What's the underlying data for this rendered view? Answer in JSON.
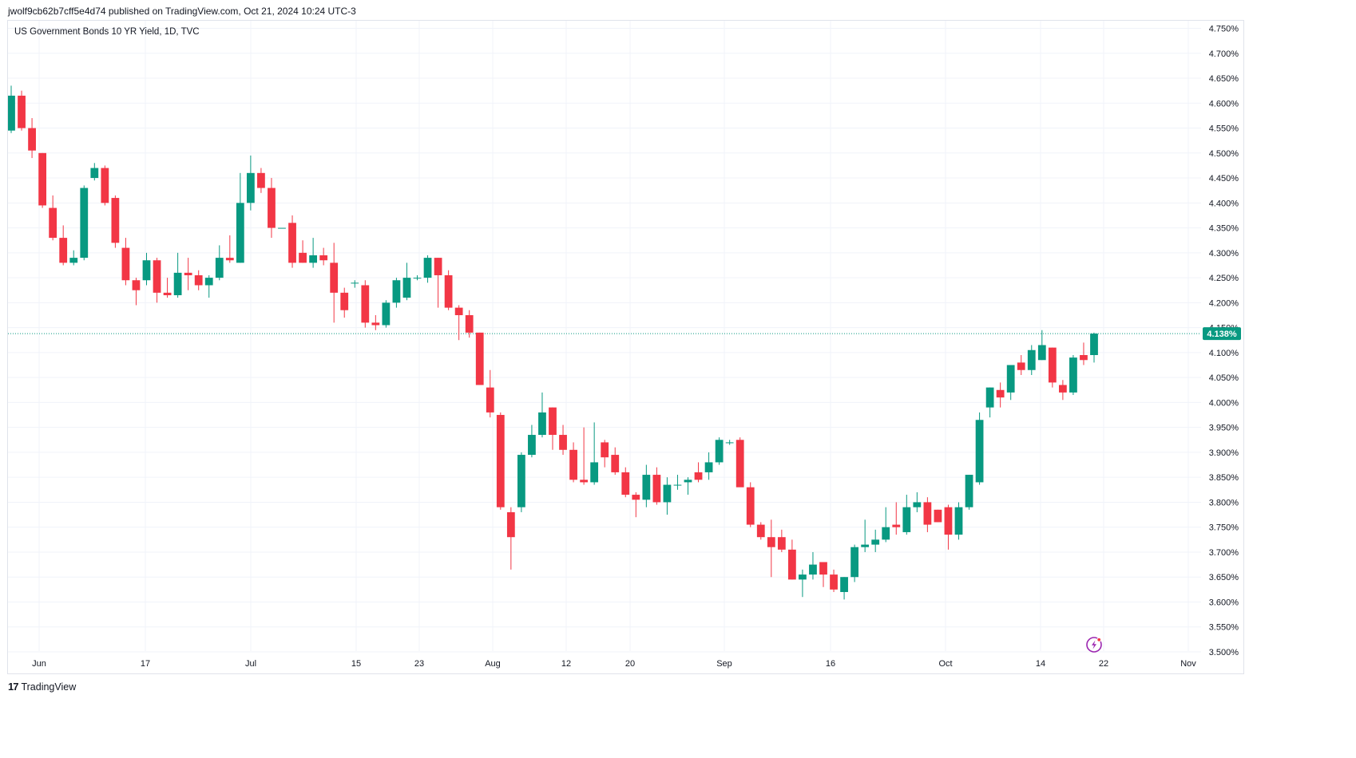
{
  "header": {
    "published_line": "jwolf9cb62b7cff5e4d74 published on TradingView.com, Oct 21, 2024 10:24 UTC-3"
  },
  "footer": {
    "brand_mark": "17",
    "brand_name": "TradingView"
  },
  "colors": {
    "up": "#089981",
    "down": "#f23645",
    "grid": "#f0f3fa",
    "axis_text": "#131722",
    "price_line": "#089981",
    "price_label_bg": "#089981"
  },
  "icons": {
    "lightning": "lightning-icon"
  },
  "chart_data": {
    "type": "candlestick",
    "title": "US Government Bonds 10 YR Yield, 1D, TVC",
    "xlabel": "",
    "ylabel": "",
    "grid": true,
    "y_axis_position": "right",
    "ylim": [
      3.5,
      4.75
    ],
    "y_ticks": [
      "3.500%",
      "3.550%",
      "3.600%",
      "3.650%",
      "3.700%",
      "3.750%",
      "3.800%",
      "3.850%",
      "3.900%",
      "3.950%",
      "4.000%",
      "4.050%",
      "4.100%",
      "4.150%",
      "4.200%",
      "4.250%",
      "4.300%",
      "4.350%",
      "4.400%",
      "4.450%",
      "4.500%",
      "4.550%",
      "4.600%",
      "4.650%",
      "4.700%",
      "4.750%"
    ],
    "x_ticks": [
      {
        "label": "Jun",
        "date": "2024-06-03"
      },
      {
        "label": "17",
        "date": "2024-06-17"
      },
      {
        "label": "Jul",
        "date": "2024-07-01"
      },
      {
        "label": "15",
        "date": "2024-07-15"
      },
      {
        "label": "23",
        "date": "2024-07-23"
      },
      {
        "label": "Aug",
        "date": "2024-08-01"
      },
      {
        "label": "12",
        "date": "2024-08-12"
      },
      {
        "label": "20",
        "date": "2024-08-20"
      },
      {
        "label": "Sep",
        "date": "2024-09-02"
      },
      {
        "label": "16",
        "date": "2024-09-16"
      },
      {
        "label": "Oct",
        "date": "2024-10-01"
      },
      {
        "label": "14",
        "date": "2024-10-14"
      },
      {
        "label": "22",
        "date": "2024-10-22"
      },
      {
        "label": "Nov",
        "date": "2024-11-01"
      }
    ],
    "last_price": 4.138,
    "last_price_label": "4.138%",
    "candles": [
      {
        "date": "2024-05-29",
        "open": 4.545,
        "high": 4.635,
        "low": 4.54,
        "close": 4.615
      },
      {
        "date": "2024-05-30",
        "open": 4.615,
        "high": 4.625,
        "low": 4.545,
        "close": 4.55
      },
      {
        "date": "2024-05-31",
        "open": 4.55,
        "high": 4.57,
        "low": 4.49,
        "close": 4.505
      },
      {
        "date": "2024-06-03",
        "open": 4.5,
        "high": 4.5,
        "low": 4.39,
        "close": 4.395
      },
      {
        "date": "2024-06-04",
        "open": 4.39,
        "high": 4.415,
        "low": 4.325,
        "close": 4.33
      },
      {
        "date": "2024-06-05",
        "open": 4.33,
        "high": 4.355,
        "low": 4.275,
        "close": 4.28
      },
      {
        "date": "2024-06-06",
        "open": 4.28,
        "high": 4.305,
        "low": 4.275,
        "close": 4.29
      },
      {
        "date": "2024-06-07",
        "open": 4.29,
        "high": 4.435,
        "low": 4.285,
        "close": 4.43
      },
      {
        "date": "2024-06-10",
        "open": 4.45,
        "high": 4.48,
        "low": 4.445,
        "close": 4.47
      },
      {
        "date": "2024-06-11",
        "open": 4.47,
        "high": 4.475,
        "low": 4.395,
        "close": 4.4
      },
      {
        "date": "2024-06-12",
        "open": 4.41,
        "high": 4.415,
        "low": 4.31,
        "close": 4.32
      },
      {
        "date": "2024-06-13",
        "open": 4.31,
        "high": 4.33,
        "low": 4.235,
        "close": 4.245
      },
      {
        "date": "2024-06-14",
        "open": 4.245,
        "high": 4.25,
        "low": 4.195,
        "close": 4.225
      },
      {
        "date": "2024-06-17",
        "open": 4.245,
        "high": 4.3,
        "low": 4.235,
        "close": 4.285
      },
      {
        "date": "2024-06-18",
        "open": 4.285,
        "high": 4.29,
        "low": 4.2,
        "close": 4.22
      },
      {
        "date": "2024-06-20",
        "open": 4.22,
        "high": 4.25,
        "low": 4.21,
        "close": 4.215
      },
      {
        "date": "2024-06-21",
        "open": 4.215,
        "high": 4.3,
        "low": 4.21,
        "close": 4.26
      },
      {
        "date": "2024-06-24",
        "open": 4.26,
        "high": 4.29,
        "low": 4.225,
        "close": 4.255
      },
      {
        "date": "2024-06-25",
        "open": 4.255,
        "high": 4.265,
        "low": 4.225,
        "close": 4.235
      },
      {
        "date": "2024-06-26",
        "open": 4.235,
        "high": 4.255,
        "low": 4.21,
        "close": 4.25
      },
      {
        "date": "2024-06-27",
        "open": 4.25,
        "high": 4.315,
        "low": 4.245,
        "close": 4.29
      },
      {
        "date": "2024-06-28",
        "open": 4.29,
        "high": 4.335,
        "low": 4.28,
        "close": 4.285
      },
      {
        "date": "2024-07-01",
        "open": 4.28,
        "high": 4.46,
        "low": 4.28,
        "close": 4.4
      },
      {
        "date": "2024-07-02",
        "open": 4.4,
        "high": 4.495,
        "low": 4.385,
        "close": 4.46
      },
      {
        "date": "2024-07-03",
        "open": 4.46,
        "high": 4.47,
        "low": 4.42,
        "close": 4.43
      },
      {
        "date": "2024-07-05",
        "open": 4.43,
        "high": 4.45,
        "low": 4.33,
        "close": 4.35
      },
      {
        "date": "2024-07-08",
        "open": 4.35,
        "high": 4.35,
        "low": 4.35,
        "close": 4.35
      },
      {
        "date": "2024-07-09",
        "open": 4.36,
        "high": 4.375,
        "low": 4.27,
        "close": 4.28
      },
      {
        "date": "2024-07-10",
        "open": 4.3,
        "high": 4.325,
        "low": 4.28,
        "close": 4.28
      },
      {
        "date": "2024-07-11",
        "open": 4.28,
        "high": 4.33,
        "low": 4.27,
        "close": 4.295
      },
      {
        "date": "2024-07-12",
        "open": 4.295,
        "high": 4.31,
        "low": 4.275,
        "close": 4.285
      },
      {
        "date": "2024-07-15",
        "open": 4.28,
        "high": 4.32,
        "low": 4.16,
        "close": 4.22
      },
      {
        "date": "2024-07-16",
        "open": 4.22,
        "high": 4.23,
        "low": 4.17,
        "close": 4.185
      },
      {
        "date": "2024-07-17",
        "open": 4.24,
        "high": 4.245,
        "low": 4.23,
        "close": 4.24
      },
      {
        "date": "2024-07-18",
        "open": 4.235,
        "high": 4.245,
        "low": 4.15,
        "close": 4.16
      },
      {
        "date": "2024-07-19",
        "open": 4.16,
        "high": 4.175,
        "low": 4.145,
        "close": 4.155
      },
      {
        "date": "2024-07-22",
        "open": 4.155,
        "high": 4.205,
        "low": 4.15,
        "close": 4.2
      },
      {
        "date": "2024-07-23",
        "open": 4.2,
        "high": 4.25,
        "low": 4.19,
        "close": 4.245
      },
      {
        "date": "2024-07-24",
        "open": 4.21,
        "high": 4.28,
        "low": 4.205,
        "close": 4.25
      },
      {
        "date": "2024-07-25",
        "open": 4.25,
        "high": 4.255,
        "low": 4.245,
        "close": 4.25
      },
      {
        "date": "2024-07-26",
        "open": 4.25,
        "high": 4.295,
        "low": 4.24,
        "close": 4.29
      },
      {
        "date": "2024-07-29",
        "open": 4.29,
        "high": 4.29,
        "low": 4.19,
        "close": 4.255
      },
      {
        "date": "2024-07-30",
        "open": 4.255,
        "high": 4.265,
        "low": 4.185,
        "close": 4.19
      },
      {
        "date": "2024-07-31",
        "open": 4.19,
        "high": 4.195,
        "low": 4.125,
        "close": 4.175
      },
      {
        "date": "2024-08-01",
        "open": 4.175,
        "high": 4.185,
        "low": 4.13,
        "close": 4.14
      },
      {
        "date": "2024-08-02",
        "open": 4.14,
        "high": 4.14,
        "low": 4.035,
        "close": 4.035
      },
      {
        "date": "2024-08-05",
        "open": 4.03,
        "high": 4.065,
        "low": 3.97,
        "close": 3.98
      },
      {
        "date": "2024-08-05b",
        "open": 3.975,
        "high": 3.98,
        "low": 3.785,
        "close": 3.79
      },
      {
        "date": "2024-08-06",
        "open": 3.78,
        "high": 3.79,
        "low": 3.665,
        "close": 3.73
      },
      {
        "date": "2024-08-07",
        "open": 3.79,
        "high": 3.9,
        "low": 3.78,
        "close": 3.895
      },
      {
        "date": "2024-08-08",
        "open": 3.895,
        "high": 3.955,
        "low": 3.89,
        "close": 3.935
      },
      {
        "date": "2024-08-09",
        "open": 3.935,
        "high": 4.02,
        "low": 3.93,
        "close": 3.98
      },
      {
        "date": "2024-08-12",
        "open": 3.99,
        "high": 3.99,
        "low": 3.905,
        "close": 3.935
      },
      {
        "date": "2024-08-13",
        "open": 3.935,
        "high": 3.955,
        "low": 3.895,
        "close": 3.905
      },
      {
        "date": "2024-08-14",
        "open": 3.905,
        "high": 3.92,
        "low": 3.84,
        "close": 3.845
      },
      {
        "date": "2024-08-15",
        "open": 3.845,
        "high": 3.95,
        "low": 3.835,
        "close": 3.84
      },
      {
        "date": "2024-08-16",
        "open": 3.84,
        "high": 3.96,
        "low": 3.835,
        "close": 3.88
      },
      {
        "date": "2024-08-19",
        "open": 3.92,
        "high": 3.925,
        "low": 3.87,
        "close": 3.89
      },
      {
        "date": "2024-08-20",
        "open": 3.895,
        "high": 3.91,
        "low": 3.855,
        "close": 3.86
      },
      {
        "date": "2024-08-21",
        "open": 3.86,
        "high": 3.87,
        "low": 3.81,
        "close": 3.815
      },
      {
        "date": "2024-08-22",
        "open": 3.815,
        "high": 3.82,
        "low": 3.77,
        "close": 3.805
      },
      {
        "date": "2024-08-23",
        "open": 3.805,
        "high": 3.875,
        "low": 3.79,
        "close": 3.855
      },
      {
        "date": "2024-08-26",
        "open": 3.855,
        "high": 3.87,
        "low": 3.795,
        "close": 3.8
      },
      {
        "date": "2024-08-27",
        "open": 3.8,
        "high": 3.85,
        "low": 3.775,
        "close": 3.835
      },
      {
        "date": "2024-08-28",
        "open": 3.835,
        "high": 3.855,
        "low": 3.825,
        "close": 3.835
      },
      {
        "date": "2024-08-29",
        "open": 3.84,
        "high": 3.85,
        "low": 3.815,
        "close": 3.845
      },
      {
        "date": "2024-08-30",
        "open": 3.86,
        "high": 3.88,
        "low": 3.84,
        "close": 3.845
      },
      {
        "date": "2024-09-03",
        "open": 3.86,
        "high": 3.9,
        "low": 3.845,
        "close": 3.88
      },
      {
        "date": "2024-09-04",
        "open": 3.88,
        "high": 3.93,
        "low": 3.875,
        "close": 3.925
      },
      {
        "date": "2024-09-05",
        "open": 3.92,
        "high": 3.925,
        "low": 3.915,
        "close": 3.92
      },
      {
        "date": "2024-09-06",
        "open": 3.925,
        "high": 3.93,
        "low": 3.835,
        "close": 3.83
      },
      {
        "date": "2024-09-09",
        "open": 3.83,
        "high": 3.84,
        "low": 3.75,
        "close": 3.755
      },
      {
        "date": "2024-09-10",
        "open": 3.755,
        "high": 3.76,
        "low": 3.725,
        "close": 3.73
      },
      {
        "date": "2024-09-11",
        "open": 3.73,
        "high": 3.765,
        "low": 3.65,
        "close": 3.71
      },
      {
        "date": "2024-09-12",
        "open": 3.73,
        "high": 3.745,
        "low": 3.7,
        "close": 3.705
      },
      {
        "date": "2024-09-13",
        "open": 3.705,
        "high": 3.725,
        "low": 3.645,
        "close": 3.645
      },
      {
        "date": "2024-09-16",
        "open": 3.645,
        "high": 3.665,
        "low": 3.61,
        "close": 3.655
      },
      {
        "date": "2024-09-17",
        "open": 3.655,
        "high": 3.7,
        "low": 3.645,
        "close": 3.675
      },
      {
        "date": "2024-09-18",
        "open": 3.68,
        "high": 3.68,
        "low": 3.63,
        "close": 3.655
      },
      {
        "date": "2024-09-19",
        "open": 3.655,
        "high": 3.665,
        "low": 3.62,
        "close": 3.625
      },
      {
        "date": "2024-09-20",
        "open": 3.62,
        "high": 3.65,
        "low": 3.605,
        "close": 3.65
      },
      {
        "date": "2024-09-23",
        "open": 3.65,
        "high": 3.715,
        "low": 3.64,
        "close": 3.71
      },
      {
        "date": "2024-09-24",
        "open": 3.71,
        "high": 3.765,
        "low": 3.7,
        "close": 3.715
      },
      {
        "date": "2024-09-25",
        "open": 3.715,
        "high": 3.745,
        "low": 3.7,
        "close": 3.725
      },
      {
        "date": "2024-09-26",
        "open": 3.725,
        "high": 3.79,
        "low": 3.72,
        "close": 3.75
      },
      {
        "date": "2024-09-27",
        "open": 3.755,
        "high": 3.8,
        "low": 3.735,
        "close": 3.75
      },
      {
        "date": "2024-09-30",
        "open": 3.74,
        "high": 3.815,
        "low": 3.735,
        "close": 3.79
      },
      {
        "date": "2024-10-01",
        "open": 3.79,
        "high": 3.82,
        "low": 3.78,
        "close": 3.8
      },
      {
        "date": "2024-10-02",
        "open": 3.8,
        "high": 3.81,
        "low": 3.74,
        "close": 3.755
      },
      {
        "date": "2024-10-03",
        "open": 3.785,
        "high": 3.785,
        "low": 3.76,
        "close": 3.76
      },
      {
        "date": "2024-10-04",
        "open": 3.79,
        "high": 3.795,
        "low": 3.705,
        "close": 3.735
      },
      {
        "date": "2024-10-07",
        "open": 3.735,
        "high": 3.8,
        "low": 3.725,
        "close": 3.79
      },
      {
        "date": "2024-10-08",
        "open": 3.79,
        "high": 3.855,
        "low": 3.785,
        "close": 3.855
      },
      {
        "date": "2024-10-09",
        "open": 3.84,
        "high": 3.98,
        "low": 3.835,
        "close": 3.965
      },
      {
        "date": "2024-10-10",
        "open": 3.99,
        "high": 4.03,
        "low": 3.97,
        "close": 4.03
      },
      {
        "date": "2024-10-11",
        "open": 4.025,
        "high": 4.04,
        "low": 3.99,
        "close": 4.01
      },
      {
        "date": "2024-10-11b",
        "open": 4.02,
        "high": 4.07,
        "low": 4.005,
        "close": 4.075
      },
      {
        "date": "2024-10-14",
        "open": 4.08,
        "high": 4.095,
        "low": 4.055,
        "close": 4.065
      },
      {
        "date": "2024-10-15",
        "open": 4.065,
        "high": 4.115,
        "low": 4.055,
        "close": 4.105
      },
      {
        "date": "2024-10-16",
        "open": 4.085,
        "high": 4.145,
        "low": 4.085,
        "close": 4.115
      },
      {
        "date": "2024-10-17",
        "open": 4.11,
        "high": 4.11,
        "low": 4.03,
        "close": 4.04
      },
      {
        "date": "2024-10-18",
        "open": 4.035,
        "high": 4.045,
        "low": 4.005,
        "close": 4.02
      },
      {
        "date": "2024-10-18b",
        "open": 4.02,
        "high": 4.095,
        "low": 4.015,
        "close": 4.09
      },
      {
        "date": "2024-10-21",
        "open": 4.095,
        "high": 4.12,
        "low": 4.075,
        "close": 4.085
      },
      {
        "date": "2024-10-21b",
        "open": 4.095,
        "high": 4.14,
        "low": 4.08,
        "close": 4.138
      }
    ]
  }
}
